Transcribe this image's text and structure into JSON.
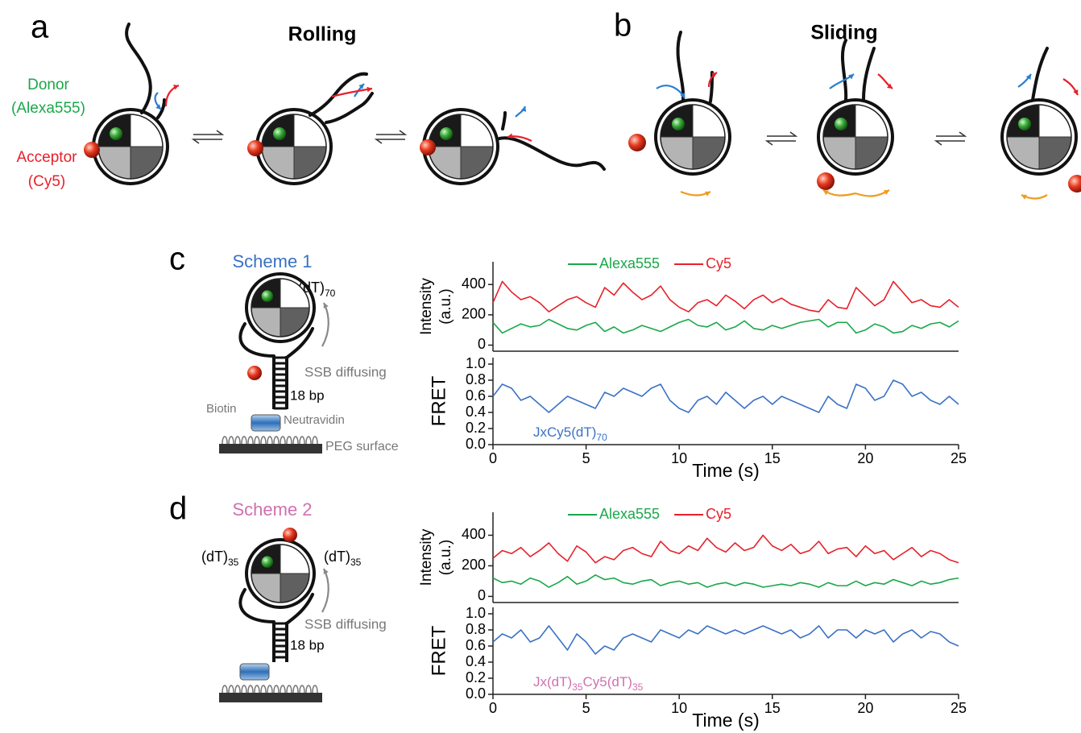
{
  "panel_a": {
    "label": "a",
    "title": "Rolling",
    "donor": [
      "Donor",
      "(Alexa555)"
    ],
    "acceptor": [
      "Acceptor",
      "(Cy5)"
    ]
  },
  "panel_b": {
    "label": "b",
    "title": "Sliding"
  },
  "panel_c": {
    "label": "c",
    "scheme": "Scheme 1",
    "strand": {
      "text": "(dT)",
      "sub": "70"
    },
    "ssb": "SSB diffusing",
    "duplex": "18 bp",
    "biotin": "Biotin",
    "neutravidin": "Neutravidin",
    "surface": "PEG surface"
  },
  "panel_d": {
    "label": "d",
    "scheme": "Scheme 2",
    "strand_left": {
      "text": "(dT)",
      "sub": "35"
    },
    "strand_right": {
      "text": "(dT)",
      "sub": "35"
    },
    "ssb": "SSB diffusing",
    "duplex": "18 bp"
  },
  "chart_data": [
    {
      "type": "line",
      "ylabel": [
        "Intensity",
        "(a.u.)"
      ],
      "xlim": [
        0,
        25
      ],
      "ylim": [
        -40,
        550
      ],
      "yticks": [
        0,
        200,
        400
      ],
      "legend": "top",
      "x": [
        0,
        0.5,
        1,
        1.5,
        2,
        2.5,
        3,
        3.5,
        4,
        4.5,
        5,
        5.5,
        6,
        6.5,
        7,
        7.5,
        8,
        8.5,
        9,
        9.5,
        10,
        10.5,
        11,
        11.5,
        12,
        12.5,
        13,
        13.5,
        14,
        14.5,
        15,
        15.5,
        16,
        16.5,
        17,
        17.5,
        18,
        18.5,
        19,
        19.5,
        20,
        20.5,
        21,
        21.5,
        22,
        22.5,
        23,
        23.5,
        24,
        24.5,
        25
      ],
      "series": [
        {
          "name": "Alexa555",
          "color": "#1aa84a",
          "values": [
            150,
            80,
            110,
            140,
            120,
            130,
            170,
            140,
            110,
            100,
            130,
            150,
            90,
            120,
            80,
            100,
            130,
            110,
            90,
            120,
            150,
            170,
            130,
            120,
            150,
            100,
            120,
            160,
            110,
            100,
            130,
            110,
            130,
            150,
            160,
            170,
            120,
            150,
            150,
            80,
            100,
            140,
            120,
            80,
            90,
            130,
            110,
            140,
            150,
            120,
            160
          ]
        },
        {
          "name": "Cy5",
          "color": "#e8202a",
          "values": [
            280,
            420,
            350,
            300,
            320,
            280,
            220,
            260,
            300,
            320,
            280,
            250,
            380,
            330,
            410,
            350,
            300,
            330,
            390,
            300,
            250,
            220,
            280,
            300,
            260,
            330,
            290,
            240,
            300,
            330,
            280,
            310,
            270,
            250,
            230,
            220,
            300,
            250,
            240,
            380,
            320,
            260,
            300,
            420,
            350,
            280,
            300,
            260,
            250,
            300,
            250
          ]
        }
      ]
    },
    {
      "type": "line",
      "ylabel": [
        "FRET"
      ],
      "xlabel": "Time (s)",
      "xlim": [
        0,
        25
      ],
      "ylim": [
        0,
        1.08
      ],
      "xticks": [
        0,
        5,
        10,
        15,
        20,
        25
      ],
      "yticks": [
        {
          "value": 0,
          "label": "0.0"
        },
        0.2,
        0.4,
        0.6,
        0.8,
        {
          "value": 1,
          "label": "1.0"
        }
      ],
      "annotation": [
        {
          "text": "JxCy5(dT)"
        },
        {
          "text": "70",
          "sub": true
        }
      ],
      "annotation_color": "#3a72c4",
      "x": [
        0,
        0.5,
        1,
        1.5,
        2,
        2.5,
        3,
        3.5,
        4,
        4.5,
        5,
        5.5,
        6,
        6.5,
        7,
        7.5,
        8,
        8.5,
        9,
        9.5,
        10,
        10.5,
        11,
        11.5,
        12,
        12.5,
        13,
        13.5,
        14,
        14.5,
        15,
        15.5,
        16,
        16.5,
        17,
        17.5,
        18,
        18.5,
        19,
        19.5,
        20,
        20.5,
        21,
        21.5,
        22,
        22.5,
        23,
        23.5,
        24,
        24.5,
        25
      ],
      "series": [
        {
          "color": "#3a72c4",
          "values": [
            0.6,
            0.75,
            0.7,
            0.55,
            0.6,
            0.5,
            0.4,
            0.5,
            0.6,
            0.55,
            0.5,
            0.45,
            0.65,
            0.6,
            0.7,
            0.65,
            0.6,
            0.7,
            0.75,
            0.55,
            0.45,
            0.4,
            0.55,
            0.6,
            0.5,
            0.65,
            0.55,
            0.45,
            0.55,
            0.6,
            0.5,
            0.6,
            0.55,
            0.5,
            0.45,
            0.4,
            0.6,
            0.5,
            0.45,
            0.75,
            0.7,
            0.55,
            0.6,
            0.8,
            0.75,
            0.6,
            0.65,
            0.55,
            0.5,
            0.6,
            0.5
          ]
        }
      ]
    },
    {
      "type": "line",
      "ylabel": [
        "Intensity",
        "(a.u.)"
      ],
      "xlim": [
        0,
        25
      ],
      "ylim": [
        -40,
        550
      ],
      "yticks": [
        0,
        200,
        400
      ],
      "legend": "top",
      "x": [
        0,
        0.5,
        1,
        1.5,
        2,
        2.5,
        3,
        3.5,
        4,
        4.5,
        5,
        5.5,
        6,
        6.5,
        7,
        7.5,
        8,
        8.5,
        9,
        9.5,
        10,
        10.5,
        11,
        11.5,
        12,
        12.5,
        13,
        13.5,
        14,
        14.5,
        15,
        15.5,
        16,
        16.5,
        17,
        17.5,
        18,
        18.5,
        19,
        19.5,
        20,
        20.5,
        21,
        21.5,
        22,
        22.5,
        23,
        23.5,
        24,
        24.5,
        25
      ],
      "series": [
        {
          "name": "Alexa555",
          "color": "#1aa84a",
          "values": [
            120,
            90,
            100,
            80,
            120,
            100,
            60,
            90,
            130,
            80,
            100,
            140,
            110,
            120,
            90,
            80,
            100,
            110,
            70,
            90,
            100,
            80,
            90,
            60,
            80,
            90,
            70,
            90,
            80,
            60,
            70,
            80,
            70,
            90,
            80,
            60,
            90,
            70,
            70,
            100,
            70,
            90,
            80,
            110,
            90,
            70,
            100,
            80,
            90,
            110,
            120
          ]
        },
        {
          "name": "Cy5",
          "color": "#e8202a",
          "values": [
            250,
            300,
            280,
            320,
            260,
            300,
            350,
            280,
            230,
            330,
            290,
            220,
            260,
            240,
            300,
            320,
            280,
            260,
            360,
            300,
            280,
            330,
            300,
            380,
            320,
            290,
            350,
            300,
            320,
            400,
            330,
            300,
            340,
            280,
            300,
            360,
            280,
            310,
            320,
            260,
            330,
            280,
            300,
            240,
            280,
            320,
            260,
            300,
            280,
            240,
            220
          ]
        }
      ]
    },
    {
      "type": "line",
      "ylabel": [
        "FRET"
      ],
      "xlabel": "Time (s)",
      "xlim": [
        0,
        25
      ],
      "ylim": [
        0,
        1.08
      ],
      "xticks": [
        0,
        5,
        10,
        15,
        20,
        25
      ],
      "yticks": [
        {
          "value": 0,
          "label": "0.0"
        },
        0.2,
        0.4,
        0.6,
        0.8,
        {
          "value": 1,
          "label": "1.0"
        }
      ],
      "annotation": [
        {
          "text": "Jx(dT)"
        },
        {
          "text": "35",
          "sub": true
        },
        {
          "text": "Cy5(dT)"
        },
        {
          "text": "35",
          "sub": true
        }
      ],
      "annotation_color": "#d070b0",
      "x": [
        0,
        0.5,
        1,
        1.5,
        2,
        2.5,
        3,
        3.5,
        4,
        4.5,
        5,
        5.5,
        6,
        6.5,
        7,
        7.5,
        8,
        8.5,
        9,
        9.5,
        10,
        10.5,
        11,
        11.5,
        12,
        12.5,
        13,
        13.5,
        14,
        14.5,
        15,
        15.5,
        16,
        16.5,
        17,
        17.5,
        18,
        18.5,
        19,
        19.5,
        20,
        20.5,
        21,
        21.5,
        22,
        22.5,
        23,
        23.5,
        24,
        24.5,
        25
      ],
      "series": [
        {
          "color": "#3a72c4",
          "values": [
            0.65,
            0.75,
            0.7,
            0.8,
            0.65,
            0.7,
            0.85,
            0.7,
            0.55,
            0.75,
            0.65,
            0.5,
            0.6,
            0.55,
            0.7,
            0.75,
            0.7,
            0.65,
            0.8,
            0.75,
            0.7,
            0.8,
            0.75,
            0.85,
            0.8,
            0.75,
            0.8,
            0.75,
            0.8,
            0.85,
            0.8,
            0.75,
            0.8,
            0.7,
            0.75,
            0.85,
            0.7,
            0.8,
            0.8,
            0.7,
            0.8,
            0.75,
            0.8,
            0.65,
            0.75,
            0.8,
            0.7,
            0.78,
            0.75,
            0.65,
            0.6
          ]
        }
      ]
    }
  ]
}
